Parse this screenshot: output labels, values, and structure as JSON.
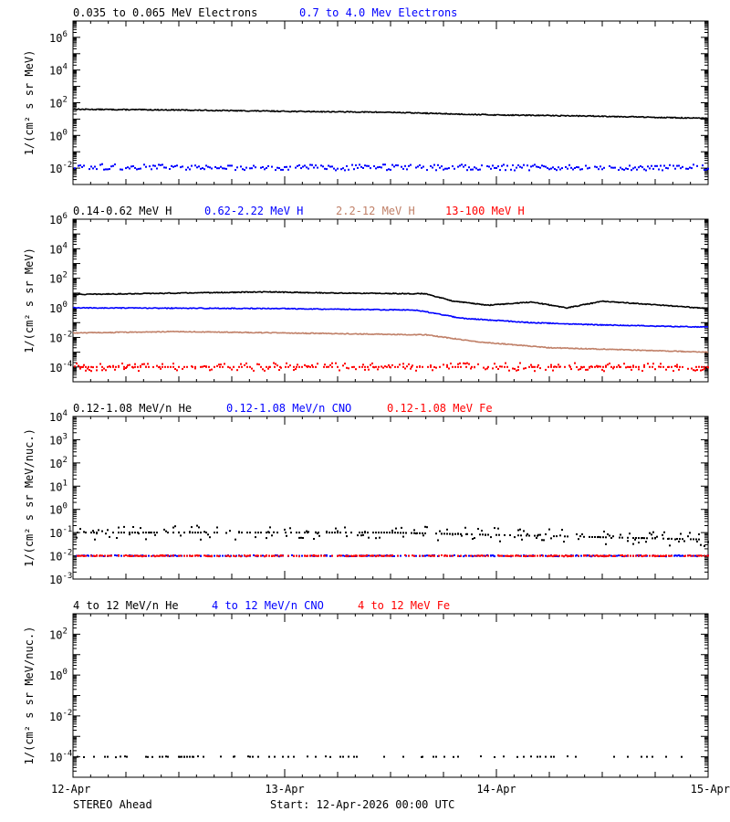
{
  "footer": {
    "spacecraft": "STEREO Ahead",
    "start": "Start: 12-Apr-2026 00:00 UTC"
  },
  "chart_data": [
    {
      "type": "scatter",
      "x_range": [
        "2026-04-12T00:00",
        "2026-04-15T00:00"
      ],
      "x_tick_labels": [
        "12-Apr",
        "13-Apr",
        "14-Apr",
        "15-Apr"
      ],
      "yscale": "log",
      "ylim": [
        0.001,
        10000000
      ],
      "ylabel": "1/(cm² s sr MeV)",
      "y_tick_labels": [
        {
          "value": 0.01,
          "base": "10",
          "exp": "-2"
        },
        {
          "value": 1,
          "base": "10",
          "exp": "0"
        },
        {
          "value": 100,
          "base": "10",
          "exp": "2"
        },
        {
          "value": 10000,
          "base": "10",
          "exp": "4"
        },
        {
          "value": 1000000,
          "base": "10",
          "exp": "6"
        }
      ],
      "series": [
        {
          "name": "0.035 to 0.065 MeV Electrons",
          "color": "#000000",
          "style": "line",
          "x": [
            "2026-04-12T00:00",
            "2026-04-12T12:00",
            "2026-04-13T00:00",
            "2026-04-13T12:00",
            "2026-04-13T20:00",
            "2026-04-14T00:00",
            "2026-04-14T12:00",
            "2026-04-15T00:00"
          ],
          "y": [
            40,
            36,
            30,
            26,
            20,
            18,
            15,
            11
          ]
        },
        {
          "name": "0.7 to 4.0 Mev Electrons",
          "color": "#0000ff",
          "style": "scatter",
          "x": [
            "2026-04-12T00:00",
            "2026-04-13T00:00",
            "2026-04-14T00:00",
            "2026-04-15T00:00"
          ],
          "y": [
            0.012,
            0.011,
            0.011,
            0.011
          ]
        }
      ]
    },
    {
      "type": "scatter",
      "x_range": [
        "2026-04-12T00:00",
        "2026-04-15T00:00"
      ],
      "x_tick_labels": [
        "12-Apr",
        "13-Apr",
        "14-Apr",
        "15-Apr"
      ],
      "yscale": "log",
      "ylim": [
        1e-05,
        1000000
      ],
      "ylabel": "1/(cm² s sr MeV)",
      "y_tick_labels": [
        {
          "value": 0.0001,
          "base": "10",
          "exp": "-4"
        },
        {
          "value": 0.01,
          "base": "10",
          "exp": "-2"
        },
        {
          "value": 1,
          "base": "10",
          "exp": "0"
        },
        {
          "value": 100,
          "base": "10",
          "exp": "2"
        },
        {
          "value": 10000,
          "base": "10",
          "exp": "4"
        },
        {
          "value": 1000000,
          "base": "10",
          "exp": "6"
        }
      ],
      "series": [
        {
          "name": "0.14-0.62 MeV H",
          "color": "#000000",
          "style": "line",
          "x": [
            "2026-04-12T00:00",
            "2026-04-12T12:00",
            "2026-04-12T22:00",
            "2026-04-13T06:00",
            "2026-04-13T16:00",
            "2026-04-13T19:00",
            "2026-04-13T23:00",
            "2026-04-14T04:00",
            "2026-04-14T08:00",
            "2026-04-14T12:00",
            "2026-04-14T17:00",
            "2026-04-15T00:00"
          ],
          "y": [
            8,
            10,
            12,
            10,
            9,
            3,
            1.5,
            2.5,
            1.0,
            2.8,
            1.8,
            0.9
          ]
        },
        {
          "name": "0.62-2.22 MeV H",
          "color": "#0000ff",
          "style": "line",
          "x": [
            "2026-04-12T00:00",
            "2026-04-13T00:00",
            "2026-04-13T15:00",
            "2026-04-13T20:00",
            "2026-04-14T04:00",
            "2026-04-14T12:00",
            "2026-04-15T00:00"
          ],
          "y": [
            1.0,
            0.9,
            0.7,
            0.2,
            0.1,
            0.07,
            0.05
          ]
        },
        {
          "name": "2.2-12 MeV H",
          "color": "#c08068",
          "style": "line",
          "x": [
            "2026-04-12T00:00",
            "2026-04-12T12:00",
            "2026-04-13T00:00",
            "2026-04-13T16:00",
            "2026-04-13T22:00",
            "2026-04-14T06:00",
            "2026-04-14T14:00",
            "2026-04-15T00:00"
          ],
          "y": [
            0.02,
            0.025,
            0.02,
            0.015,
            0.005,
            0.002,
            0.0015,
            0.001
          ]
        },
        {
          "name": "13-100 MeV H",
          "color": "#ff0000",
          "style": "scatter",
          "x": [
            "2026-04-12T00:00",
            "2026-04-13T12:00",
            "2026-04-15T00:00"
          ],
          "y": [
            0.0001,
            0.0001,
            0.0001
          ]
        }
      ]
    },
    {
      "type": "scatter",
      "x_range": [
        "2026-04-12T00:00",
        "2026-04-15T00:00"
      ],
      "x_tick_labels": [
        "12-Apr",
        "13-Apr",
        "14-Apr",
        "15-Apr"
      ],
      "yscale": "log",
      "ylim": [
        0.001,
        10000
      ],
      "ylabel": "1/(cm² s sr MeV/nuc.)",
      "y_tick_labels": [
        {
          "value": 0.001,
          "base": "10",
          "exp": "-3"
        },
        {
          "value": 0.01,
          "base": "10",
          "exp": "-2"
        },
        {
          "value": 0.1,
          "base": "10",
          "exp": "-1"
        },
        {
          "value": 1,
          "base": "10",
          "exp": "0"
        },
        {
          "value": 10,
          "base": "10",
          "exp": "1"
        },
        {
          "value": 100,
          "base": "10",
          "exp": "2"
        },
        {
          "value": 1000,
          "base": "10",
          "exp": "3"
        },
        {
          "value": 10000,
          "base": "10",
          "exp": "4"
        }
      ],
      "series": [
        {
          "name": "0.12-1.08 MeV/n He",
          "color": "#000000",
          "style": "scatter",
          "x": [
            "2026-04-12T00:00",
            "2026-04-13T12:00",
            "2026-04-15T00:00"
          ],
          "y": [
            0.1,
            0.1,
            0.05
          ]
        },
        {
          "name": "0.12-1.08 MeV/n CNO",
          "color": "#0000ff",
          "style": "scatter",
          "x": [
            "2026-04-12T00:00",
            "2026-04-13T12:00",
            "2026-04-15T00:00"
          ],
          "y": [
            0.01,
            0.01,
            0.01
          ]
        },
        {
          "name": "0.12-1.08 MeV Fe",
          "color": "#ff0000",
          "style": "scatter",
          "x": [
            "2026-04-12T00:00",
            "2026-04-13T12:00",
            "2026-04-15T00:00"
          ],
          "y": [
            0.01,
            0.01,
            0.01
          ]
        }
      ]
    },
    {
      "type": "scatter",
      "x_range": [
        "2026-04-12T00:00",
        "2026-04-15T00:00"
      ],
      "x_tick_labels": [
        "12-Apr",
        "13-Apr",
        "14-Apr",
        "15-Apr"
      ],
      "yscale": "log",
      "ylim": [
        1e-05,
        1000
      ],
      "ylabel": "1/(cm² s sr MeV/nuc.)",
      "y_tick_labels": [
        {
          "value": 0.0001,
          "base": "10",
          "exp": "-4"
        },
        {
          "value": 0.01,
          "base": "10",
          "exp": "-2"
        },
        {
          "value": 1,
          "base": "10",
          "exp": "0"
        },
        {
          "value": 100,
          "base": "10",
          "exp": "2"
        }
      ],
      "series": [
        {
          "name": "4 to 12 MeV/n He",
          "color": "#000000",
          "style": "scatter",
          "x": [
            "2026-04-12T00:00",
            "2026-04-13T12:00",
            "2026-04-15T00:00"
          ],
          "y": [
            0.0001,
            0.0001,
            0.0001
          ]
        },
        {
          "name": "4 to 12 MeV/n CNO",
          "color": "#0000ff",
          "style": "scatter",
          "x": [],
          "y": []
        },
        {
          "name": "4 to 12 MeV Fe",
          "color": "#ff0000",
          "style": "scatter",
          "x": [],
          "y": []
        }
      ]
    }
  ]
}
